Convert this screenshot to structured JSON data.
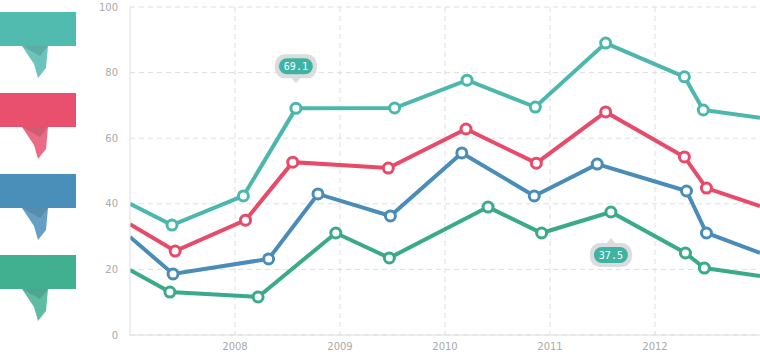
{
  "chart_data": {
    "type": "line",
    "xlim": [
      2007,
      2013
    ],
    "xticks": [
      2008,
      2009,
      2010,
      2011,
      2012
    ],
    "ylim": [
      0,
      100
    ],
    "yticks": [
      0,
      20,
      40,
      60,
      80,
      100
    ],
    "grid": true,
    "marker": "circle",
    "series": [
      {
        "color": "#4cb8ad",
        "x": [
          2007,
          2007.4,
          2008.08,
          2008.58,
          2009.52,
          2010.21,
          2010.86,
          2011.53,
          2012.28,
          2012.46,
          2013
        ],
        "values": [
          40,
          33.5,
          42.4,
          69.1,
          69.2,
          77.7,
          69.5,
          89,
          78.7,
          68.6,
          66.2
        ]
      },
      {
        "color": "#e84a6a",
        "x": [
          2007,
          2007.43,
          2008.1,
          2008.55,
          2009.46,
          2010.2,
          2010.87,
          2011.53,
          2012.28,
          2012.49,
          2013
        ],
        "values": [
          33.8,
          25.6,
          35,
          52.7,
          50.9,
          62.8,
          52.4,
          68,
          54.3,
          44.8,
          39.3
        ]
      },
      {
        "color": "#4a8cb8",
        "x": [
          2007,
          2007.41,
          2008.32,
          2008.79,
          2009.48,
          2010.16,
          2010.85,
          2011.45,
          2012.3,
          2012.49,
          2013
        ],
        "values": [
          29.9,
          18.6,
          23.2,
          43,
          36.3,
          55.5,
          42.4,
          52.1,
          43.9,
          31.1,
          25
        ]
      },
      {
        "color": "#3aaa8a",
        "x": [
          2007,
          2007.38,
          2008.22,
          2008.96,
          2009.47,
          2010.41,
          2010.92,
          2011.58,
          2012.29,
          2012.47,
          2013
        ],
        "values": [
          19.8,
          13.1,
          11.6,
          31.1,
          23.5,
          39,
          31.1,
          37.5,
          25,
          20.4,
          18
        ]
      }
    ],
    "annotations": [
      {
        "text": "69.1",
        "x": 2008.58,
        "y": 69.1
      },
      {
        "text": "37.5",
        "x": 2011.58,
        "y": 37.5
      }
    ]
  }
}
